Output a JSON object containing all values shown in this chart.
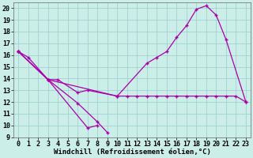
{
  "background_color": "#cceee8",
  "line_color": "#aa00aa",
  "grid_color": "#99cccc",
  "xlabel": "Windchill (Refroidissement éolien,°C)",
  "xlabel_fontsize": 6.5,
  "tick_fontsize": 6,
  "xlim": [
    -0.5,
    23.5
  ],
  "ylim": [
    9,
    20.5
  ],
  "yticks": [
    9,
    10,
    11,
    12,
    13,
    14,
    15,
    16,
    17,
    18,
    19,
    20
  ],
  "xticks": [
    0,
    1,
    2,
    3,
    4,
    5,
    6,
    7,
    8,
    9,
    10,
    11,
    12,
    13,
    14,
    15,
    16,
    17,
    18,
    19,
    20,
    21,
    22,
    23
  ],
  "line1_x": [
    0,
    1,
    3,
    4,
    6,
    7,
    10,
    11,
    12,
    13,
    14,
    15,
    16,
    17,
    18,
    19,
    20,
    21,
    22,
    23
  ],
  "line1_y": [
    16.3,
    15.8,
    13.9,
    13.9,
    12.8,
    13.0,
    12.5,
    12.5,
    12.5,
    12.5,
    12.5,
    12.5,
    12.5,
    12.5,
    12.5,
    12.5,
    12.5,
    12.5,
    12.5,
    12.0
  ],
  "line2_x": [
    0,
    3,
    6,
    8,
    9
  ],
  "line2_y": [
    16.3,
    13.9,
    11.9,
    10.3,
    9.4
  ],
  "line3_x": [
    0,
    3,
    7,
    8
  ],
  "line3_y": [
    16.3,
    13.9,
    9.8,
    10.0
  ],
  "line4_x": [
    0,
    3,
    10,
    13,
    14,
    15,
    16,
    17,
    18,
    19,
    20,
    21,
    23
  ],
  "line4_y": [
    16.3,
    13.9,
    12.5,
    15.3,
    15.8,
    16.3,
    17.5,
    18.5,
    19.9,
    20.2,
    19.4,
    17.3,
    12.0
  ]
}
